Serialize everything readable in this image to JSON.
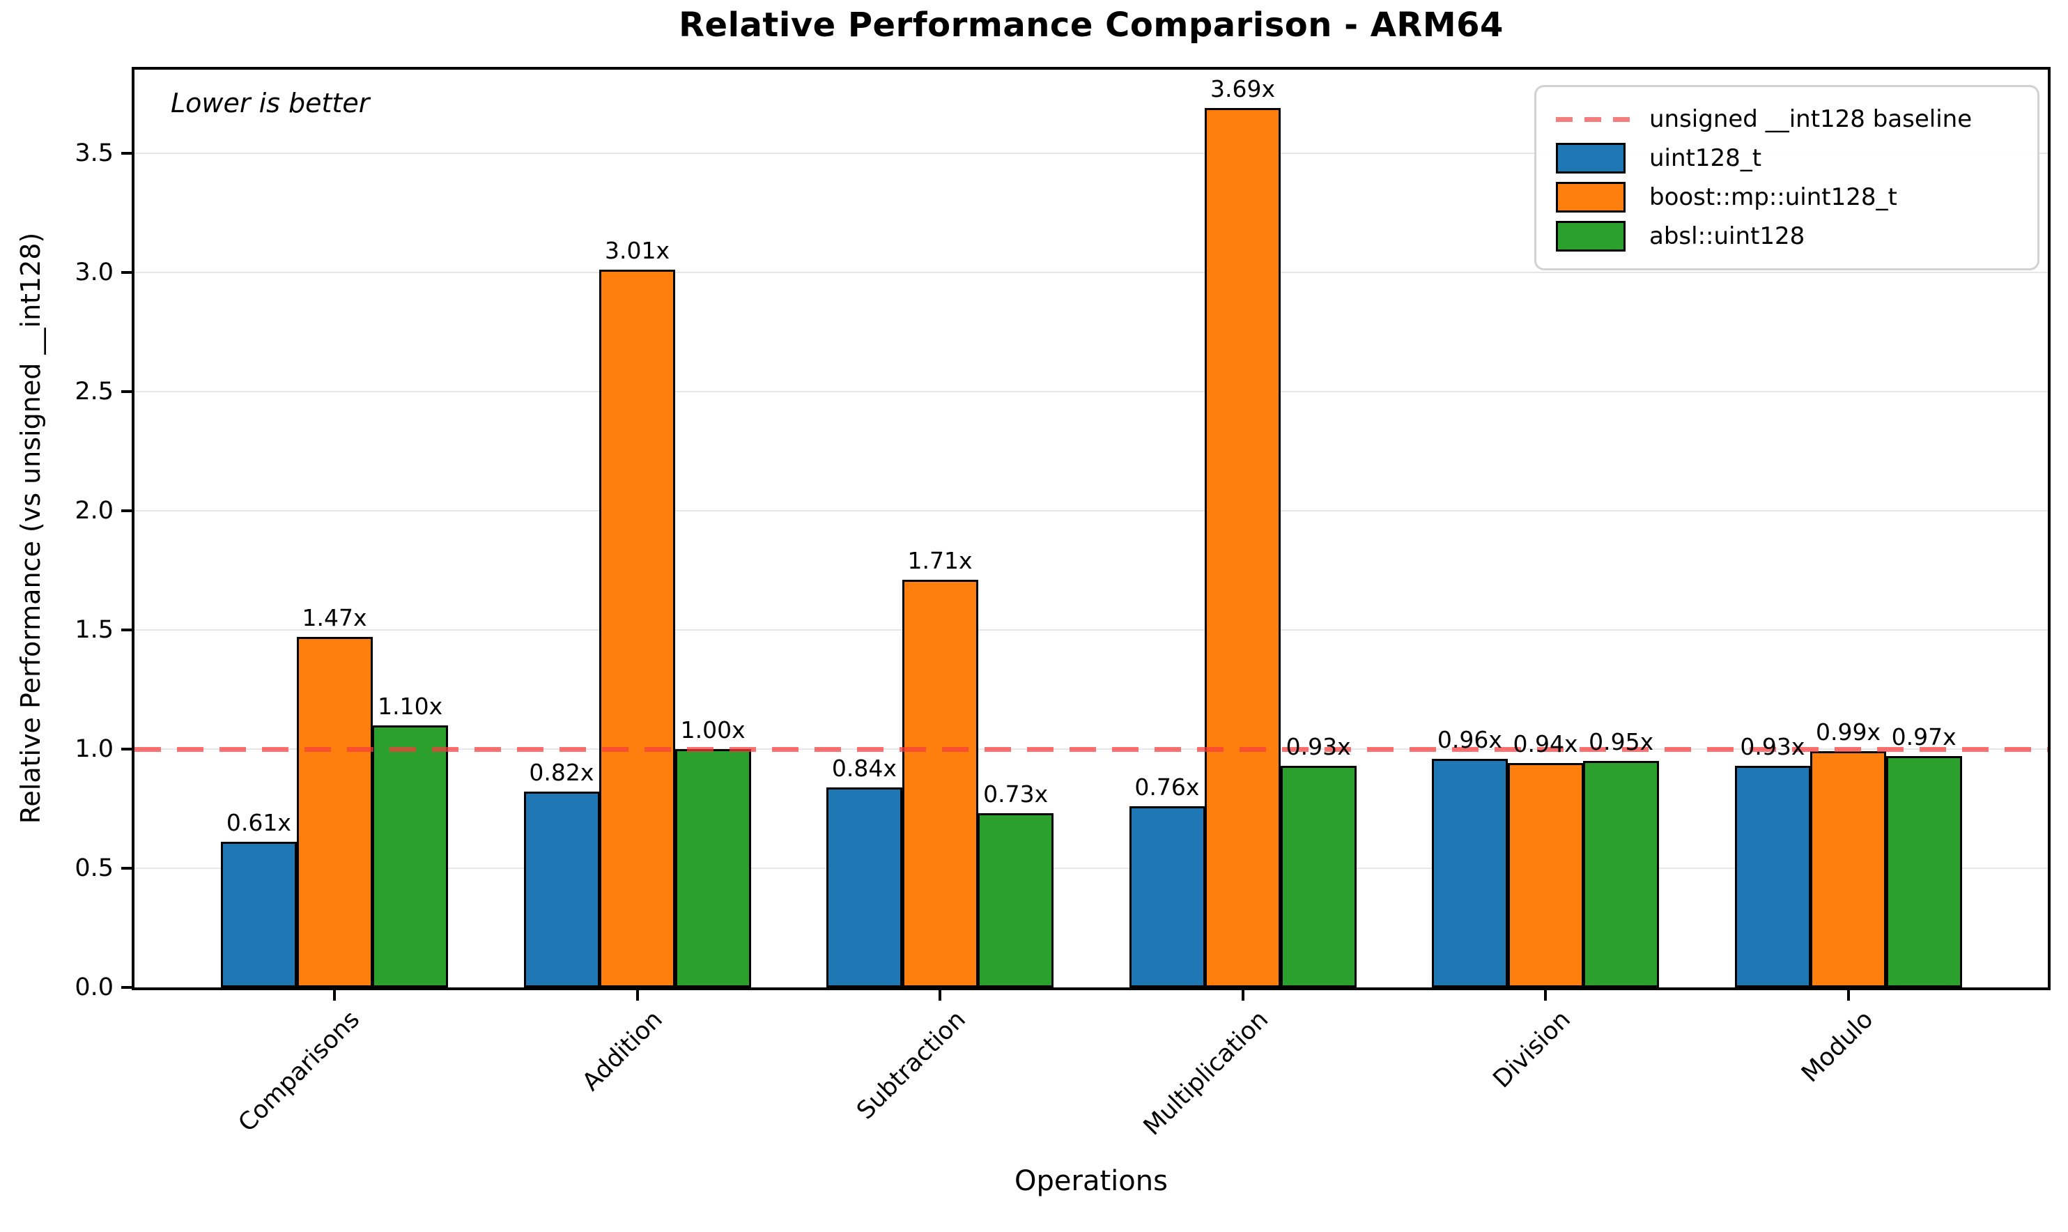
{
  "title": "Relative Performance Comparison - ARM64",
  "annotation": "Lower is better",
  "axes": {
    "xlabel": "Operations",
    "ylabel": "Relative Performance (vs unsigned __int128)"
  },
  "legend": {
    "position": "upper right",
    "items": [
      {
        "kind": "line",
        "label": "unsigned __int128 baseline",
        "color": "#f47d7d"
      },
      {
        "kind": "patch",
        "label": "uint128_t",
        "color": "#1f77b4"
      },
      {
        "kind": "patch",
        "label": "boost::mp::uint128_t",
        "color": "#ff7f0e"
      },
      {
        "kind": "patch",
        "label": "absl::uint128",
        "color": "#2ca02c"
      }
    ]
  },
  "chart_data": {
    "type": "bar",
    "title": "Relative Performance Comparison - ARM64",
    "xlabel": "Operations",
    "ylabel": "Relative Performance (vs unsigned __int128)",
    "categories": [
      "Comparisons",
      "Addition",
      "Subtraction",
      "Multiplication",
      "Division",
      "Modulo"
    ],
    "series": [
      {
        "name": "uint128_t",
        "color": "#1f77b4",
        "values": [
          0.61,
          0.82,
          0.84,
          0.76,
          0.96,
          0.93
        ]
      },
      {
        "name": "boost::mp::uint128_t",
        "color": "#ff7f0e",
        "values": [
          1.47,
          3.01,
          1.71,
          3.69,
          0.94,
          0.99
        ]
      },
      {
        "name": "absl::uint128",
        "color": "#2ca02c",
        "values": [
          1.1,
          1.0,
          0.73,
          0.93,
          0.95,
          0.97
        ]
      }
    ],
    "value_label_suffix": "x",
    "value_label_decimals": 2,
    "baseline": {
      "value": 1.0,
      "label": "unsigned __int128 baseline",
      "color": "#ff3c3c"
    },
    "yticks": [
      0.0,
      0.5,
      1.0,
      1.5,
      2.0,
      2.5,
      3.0,
      3.5
    ],
    "ylim": [
      0,
      3.85
    ],
    "grid": true,
    "legend_position": "upper right",
    "annotation": "Lower is better"
  }
}
